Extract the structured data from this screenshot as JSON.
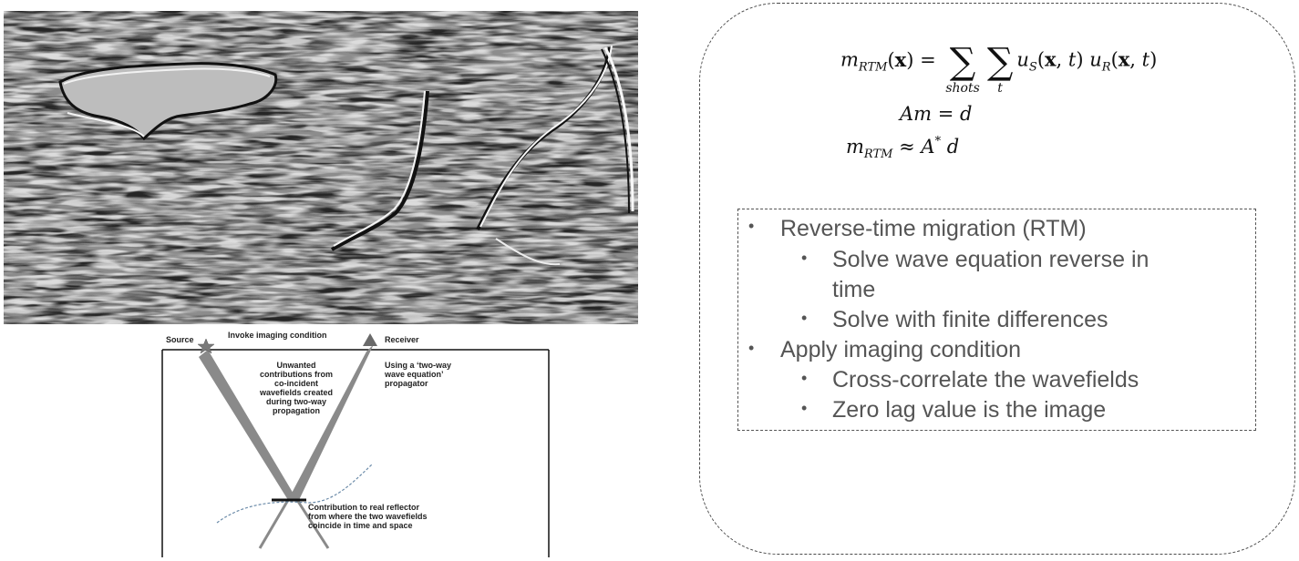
{
  "schematic": {
    "source_label": "Source",
    "condition_label": "Invoke imaging condition",
    "receiver_label": "Receiver",
    "unwanted_text": [
      "Unwanted",
      "contributions from",
      "co-incident",
      "wavefields created",
      "during two-way",
      "propagation"
    ],
    "propagator_text": [
      "Using a ‘two-way",
      "wave equation’",
      "propagator"
    ],
    "reflector_text": [
      "Contribution to real reflector",
      "from where the two wavefields",
      "coincide in time and space"
    ]
  },
  "equations": {
    "eq1_lhs_var": "m",
    "eq1_lhs_sub": "RTM",
    "eq1_arg": "(x) =",
    "eq1_sum1_sub": "shots",
    "eq1_sum2_sub": "t",
    "eq1_u": "u",
    "eq1_us_sub": "S",
    "eq1_us_args": "(x, t)",
    "eq1_ur_sub": "R",
    "eq1_ur_args": "(x, t)",
    "eq2": "Am = d",
    "eq3_var": "m",
    "eq3_sub": "RTM",
    "eq3_rhs": "≈ A",
    "eq3_sup": "*",
    "eq3_end": " d"
  },
  "bullets": [
    {
      "level": 1,
      "text": "Reverse-time migration (RTM)"
    },
    {
      "level": 2,
      "text": "Solve wave equation reverse in"
    },
    {
      "level": 2,
      "text": "time",
      "continuation": true
    },
    {
      "level": 2,
      "text": "Solve with finite differences"
    },
    {
      "level": 1,
      "text": "Apply imaging condition"
    },
    {
      "level": 2,
      "text": "Cross-correlate the wavefields"
    },
    {
      "level": 2,
      "text": "Zero lag value is the image"
    }
  ]
}
